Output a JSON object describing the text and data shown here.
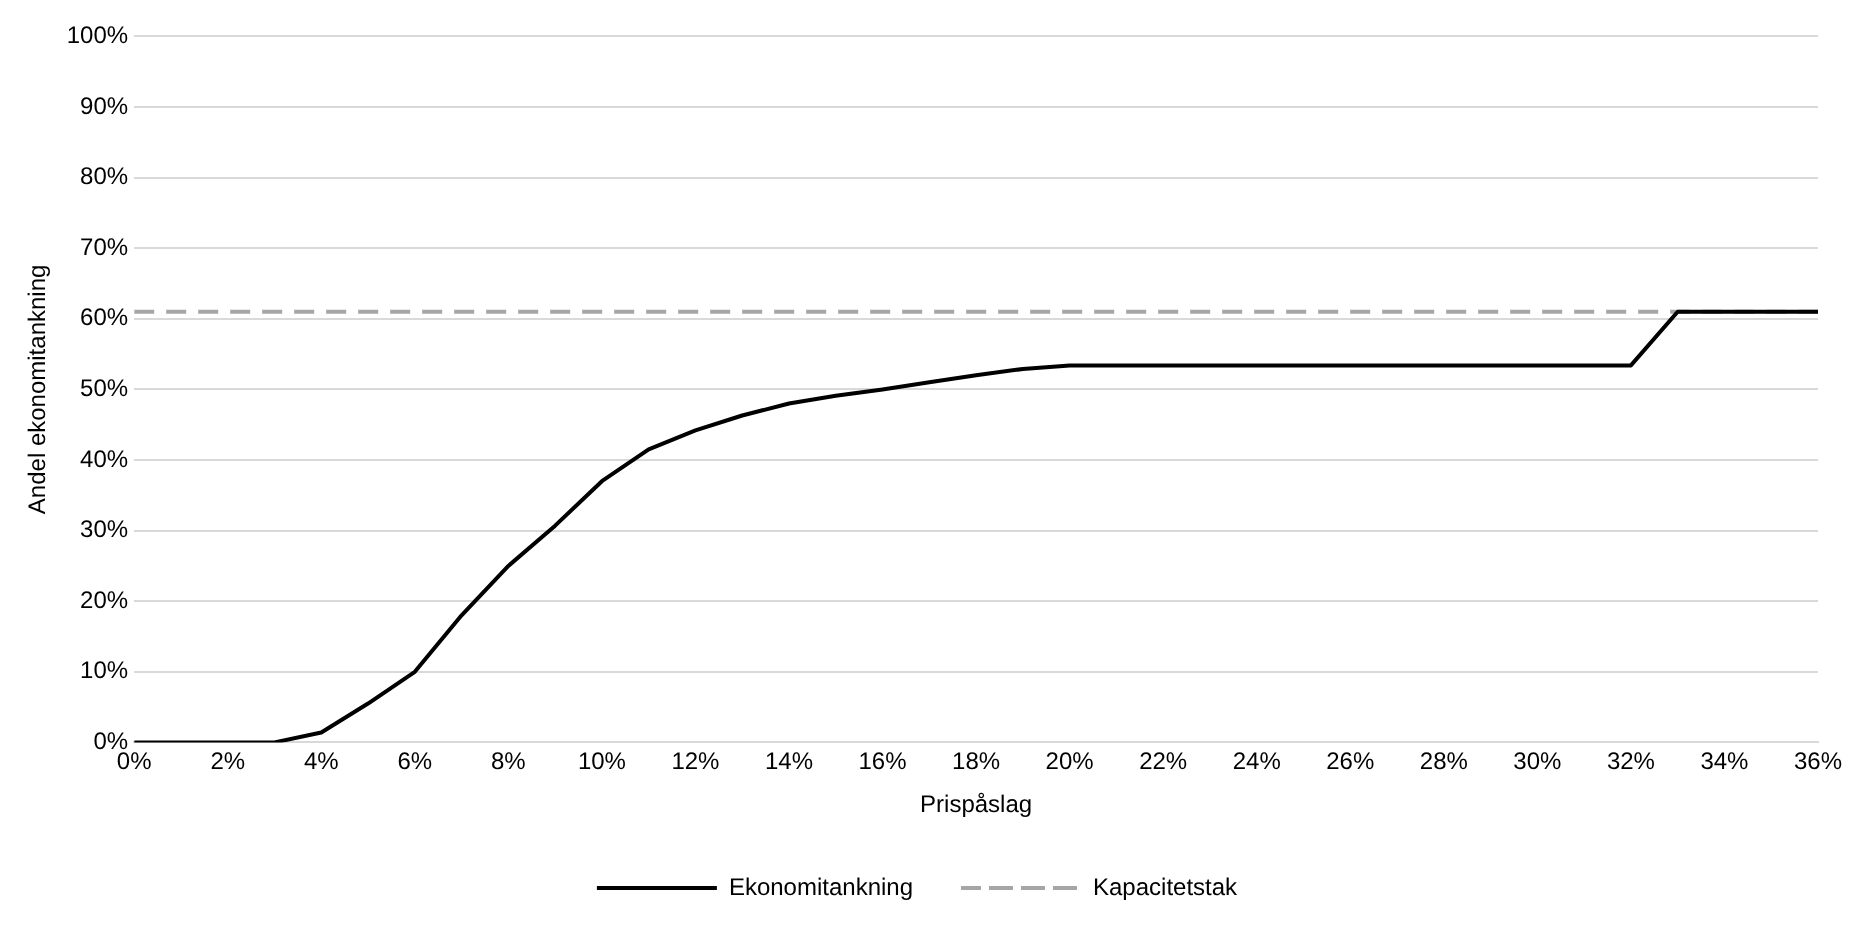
{
  "chart_data": {
    "type": "line",
    "xlabel": "Prispåslag",
    "ylabel": "Andel ekonomitankning",
    "x": [
      0,
      1,
      2,
      3,
      4,
      5,
      6,
      7,
      8,
      9,
      10,
      11,
      12,
      13,
      14,
      15,
      16,
      17,
      18,
      19,
      20,
      21,
      22,
      23,
      24,
      25,
      26,
      27,
      28,
      29,
      30,
      31,
      32,
      33,
      34,
      35,
      36
    ],
    "series": [
      {
        "name": "Ekonomitankning",
        "color": "#000000",
        "line_style": "solid",
        "values": [
          0,
          0,
          0,
          0,
          1.4,
          5.5,
          10,
          18,
          25,
          30.7,
          37,
          41.5,
          44.2,
          46.3,
          48,
          49.1,
          50,
          51,
          52,
          52.9,
          53.4,
          53.4,
          53.4,
          53.4,
          53.4,
          53.4,
          53.4,
          53.4,
          53.4,
          53.4,
          53.4,
          53.4,
          53.4,
          61,
          61,
          61,
          61
        ]
      },
      {
        "name": "Kapacitetstak",
        "color": "#a6a6a6",
        "line_style": "dashed",
        "values": [
          61,
          61,
          61,
          61,
          61,
          61,
          61,
          61,
          61,
          61,
          61,
          61,
          61,
          61,
          61,
          61,
          61,
          61,
          61,
          61,
          61,
          61,
          61,
          61,
          61,
          61,
          61,
          61,
          61,
          61,
          61,
          61,
          61,
          61,
          61,
          61,
          61
        ]
      }
    ],
    "xlim": [
      0,
      36
    ],
    "xticks": [
      {
        "value": 0,
        "label": "0%"
      },
      {
        "value": 2,
        "label": "2%"
      },
      {
        "value": 4,
        "label": "4%"
      },
      {
        "value": 6,
        "label": "6%"
      },
      {
        "value": 8,
        "label": "8%"
      },
      {
        "value": 10,
        "label": "10%"
      },
      {
        "value": 12,
        "label": "12%"
      },
      {
        "value": 14,
        "label": "14%"
      },
      {
        "value": 16,
        "label": "16%"
      },
      {
        "value": 18,
        "label": "18%"
      },
      {
        "value": 20,
        "label": "20%"
      },
      {
        "value": 22,
        "label": "22%"
      },
      {
        "value": 24,
        "label": "24%"
      },
      {
        "value": 26,
        "label": "26%"
      },
      {
        "value": 28,
        "label": "28%"
      },
      {
        "value": 30,
        "label": "30%"
      },
      {
        "value": 32,
        "label": "32%"
      },
      {
        "value": 34,
        "label": "34%"
      },
      {
        "value": 36,
        "label": "36%"
      }
    ],
    "ylim": [
      0,
      100
    ],
    "yticks": [
      {
        "value": 0,
        "label": "0%"
      },
      {
        "value": 10,
        "label": "10%"
      },
      {
        "value": 20,
        "label": "20%"
      },
      {
        "value": 30,
        "label": "30%"
      },
      {
        "value": 40,
        "label": "40%"
      },
      {
        "value": 50,
        "label": "50%"
      },
      {
        "value": 60,
        "label": "60%"
      },
      {
        "value": 70,
        "label": "70%"
      },
      {
        "value": 80,
        "label": "80%"
      },
      {
        "value": 90,
        "label": "90%"
      },
      {
        "value": 100,
        "label": "100%"
      }
    ],
    "grid": "y",
    "legend": "bottom",
    "marker": "none"
  }
}
